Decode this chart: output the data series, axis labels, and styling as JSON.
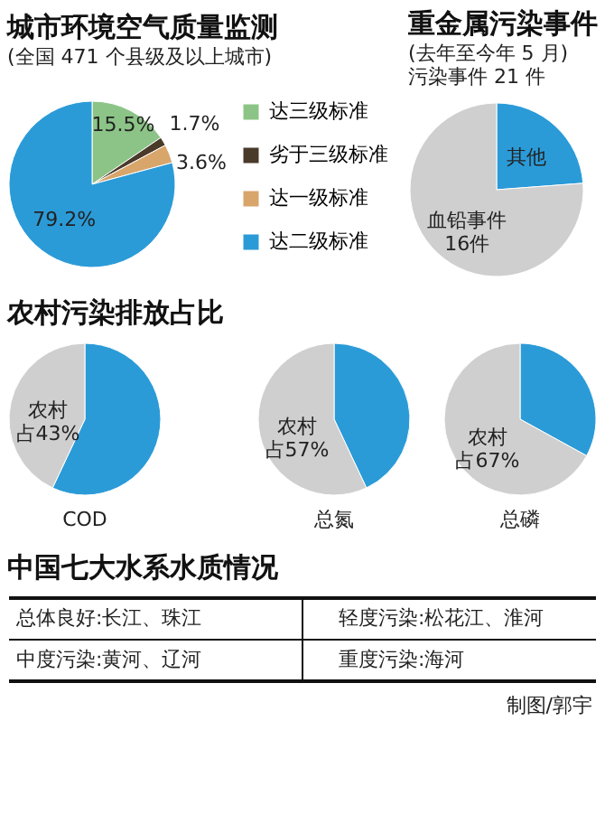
{
  "chart_data": [
    {
      "type": "pie",
      "title": "城市环境空气质量监测",
      "subtitle": "(全国 471 个县级及以上城市)",
      "categories": [
        "达三级标准",
        "劣于三级标准",
        "达一级标准",
        "达二级标准"
      ],
      "values": [
        15.5,
        1.7,
        3.6,
        79.2
      ],
      "value_labels": [
        "15.5%",
        "1.7%",
        "3.6%",
        "79.2%"
      ],
      "colors": [
        "#8cc487",
        "#4a3a2a",
        "#d8a56b",
        "#2b9bd8"
      ],
      "legend": "right"
    },
    {
      "type": "pie",
      "title": "重金属污染事件",
      "subtitle": "(去年至今年 5 月)",
      "annotations": [
        "污染事件 21 件"
      ],
      "categories": [
        "其他",
        "血铅事件"
      ],
      "values": [
        5,
        16
      ],
      "value_labels": [
        null,
        "16件"
      ],
      "colors": [
        "#2b9bd8",
        "#cfcfcf"
      ]
    },
    {
      "type": "pie",
      "title": "农村污染排放占比",
      "xlabel": "COD",
      "categories": [
        null,
        "农村"
      ],
      "values": [
        57,
        43
      ],
      "value_labels": [
        null,
        "占43%"
      ],
      "colors": [
        "#2b9bd8",
        "#cfcfcf"
      ]
    },
    {
      "type": "pie",
      "xlabel": "总氮",
      "categories": [
        null,
        "农村"
      ],
      "values": [
        43,
        57
      ],
      "value_labels": [
        null,
        "占57%"
      ],
      "colors": [
        "#2b9bd8",
        "#cfcfcf"
      ]
    },
    {
      "type": "pie",
      "xlabel": "总磷",
      "categories": [
        null,
        "农村"
      ],
      "values": [
        33,
        67
      ],
      "value_labels": [
        null,
        "占67%"
      ],
      "colors": [
        "#2b9bd8",
        "#cfcfcf"
      ]
    },
    {
      "type": "other",
      "title": "中国七大水系水质情况",
      "annotations": [
        "总体良好:长江、珠江",
        "轻度污染:松花江、淮河",
        "中度污染:黄河、辽河",
        "重度污染:海河",
        "制图/郭宇"
      ]
    }
  ]
}
